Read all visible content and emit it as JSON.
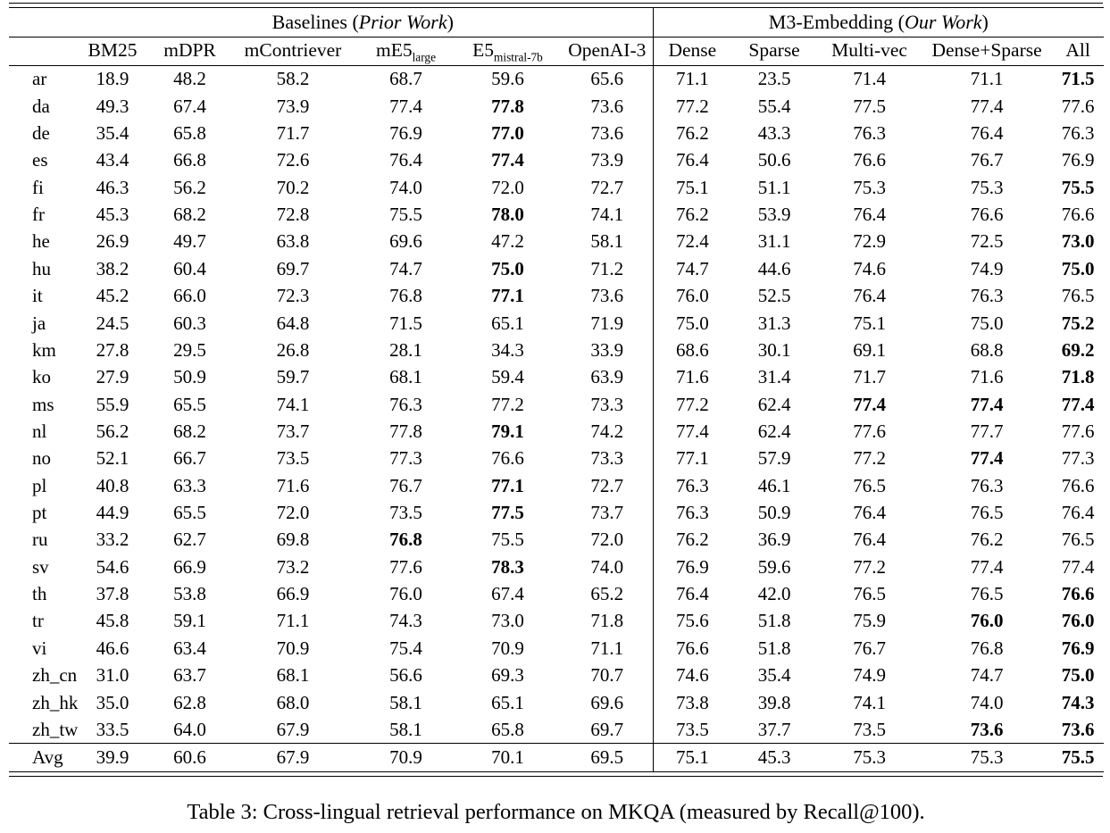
{
  "caption": "Table 3: Cross-lingual retrieval performance on MKQA (measured by Recall@100).",
  "table": {
    "groups": {
      "baselines": {
        "prefix": "Baselines (",
        "italic": "Prior Work",
        "suffix": ")"
      },
      "m3": {
        "prefix": "M3-Embedding (",
        "italic": "Our Work",
        "suffix": ")"
      }
    },
    "columns": [
      {
        "label": "BM25"
      },
      {
        "label": "mDPR"
      },
      {
        "label": "mContriever"
      },
      {
        "label": "mE5",
        "sub": "large"
      },
      {
        "label": "E5",
        "sub": "mistral-7b"
      },
      {
        "label": "OpenAI-3"
      },
      {
        "label": "Dense",
        "section_start": true
      },
      {
        "label": "Sparse"
      },
      {
        "label": "Multi-vec"
      },
      {
        "label": "Dense+Sparse"
      },
      {
        "label": "All"
      }
    ],
    "rows": [
      {
        "lang": "ar",
        "values": [
          "18.9",
          "48.2",
          "58.2",
          "68.7",
          "59.6",
          "65.6",
          "71.1",
          "23.5",
          "71.4",
          "71.1",
          "71.5"
        ],
        "bold": [
          10
        ]
      },
      {
        "lang": "da",
        "values": [
          "49.3",
          "67.4",
          "73.9",
          "77.4",
          "77.8",
          "73.6",
          "77.2",
          "55.4",
          "77.5",
          "77.4",
          "77.6"
        ],
        "bold": [
          4
        ]
      },
      {
        "lang": "de",
        "values": [
          "35.4",
          "65.8",
          "71.7",
          "76.9",
          "77.0",
          "73.6",
          "76.2",
          "43.3",
          "76.3",
          "76.4",
          "76.3"
        ],
        "bold": [
          4
        ]
      },
      {
        "lang": "es",
        "values": [
          "43.4",
          "66.8",
          "72.6",
          "76.4",
          "77.4",
          "73.9",
          "76.4",
          "50.6",
          "76.6",
          "76.7",
          "76.9"
        ],
        "bold": [
          4
        ]
      },
      {
        "lang": "fi",
        "values": [
          "46.3",
          "56.2",
          "70.2",
          "74.0",
          "72.0",
          "72.7",
          "75.1",
          "51.1",
          "75.3",
          "75.3",
          "75.5"
        ],
        "bold": [
          10
        ]
      },
      {
        "lang": "fr",
        "values": [
          "45.3",
          "68.2",
          "72.8",
          "75.5",
          "78.0",
          "74.1",
          "76.2",
          "53.9",
          "76.4",
          "76.6",
          "76.6"
        ],
        "bold": [
          4
        ]
      },
      {
        "lang": "he",
        "values": [
          "26.9",
          "49.7",
          "63.8",
          "69.6",
          "47.2",
          "58.1",
          "72.4",
          "31.1",
          "72.9",
          "72.5",
          "73.0"
        ],
        "bold": [
          10
        ]
      },
      {
        "lang": "hu",
        "values": [
          "38.2",
          "60.4",
          "69.7",
          "74.7",
          "75.0",
          "71.2",
          "74.7",
          "44.6",
          "74.6",
          "74.9",
          "75.0"
        ],
        "bold": [
          4,
          10
        ]
      },
      {
        "lang": "it",
        "values": [
          "45.2",
          "66.0",
          "72.3",
          "76.8",
          "77.1",
          "73.6",
          "76.0",
          "52.5",
          "76.4",
          "76.3",
          "76.5"
        ],
        "bold": [
          4
        ]
      },
      {
        "lang": "ja",
        "values": [
          "24.5",
          "60.3",
          "64.8",
          "71.5",
          "65.1",
          "71.9",
          "75.0",
          "31.3",
          "75.1",
          "75.0",
          "75.2"
        ],
        "bold": [
          10
        ]
      },
      {
        "lang": "km",
        "values": [
          "27.8",
          "29.5",
          "26.8",
          "28.1",
          "34.3",
          "33.9",
          "68.6",
          "30.1",
          "69.1",
          "68.8",
          "69.2"
        ],
        "bold": [
          10
        ]
      },
      {
        "lang": "ko",
        "values": [
          "27.9",
          "50.9",
          "59.7",
          "68.1",
          "59.4",
          "63.9",
          "71.6",
          "31.4",
          "71.7",
          "71.6",
          "71.8"
        ],
        "bold": [
          10
        ]
      },
      {
        "lang": "ms",
        "values": [
          "55.9",
          "65.5",
          "74.1",
          "76.3",
          "77.2",
          "73.3",
          "77.2",
          "62.4",
          "77.4",
          "77.4",
          "77.4"
        ],
        "bold": [
          8,
          9,
          10
        ]
      },
      {
        "lang": "nl",
        "values": [
          "56.2",
          "68.2",
          "73.7",
          "77.8",
          "79.1",
          "74.2",
          "77.4",
          "62.4",
          "77.6",
          "77.7",
          "77.6"
        ],
        "bold": [
          4
        ]
      },
      {
        "lang": "no",
        "values": [
          "52.1",
          "66.7",
          "73.5",
          "77.3",
          "76.6",
          "73.3",
          "77.1",
          "57.9",
          "77.2",
          "77.4",
          "77.3"
        ],
        "bold": [
          9
        ]
      },
      {
        "lang": "pl",
        "values": [
          "40.8",
          "63.3",
          "71.6",
          "76.7",
          "77.1",
          "72.7",
          "76.3",
          "46.1",
          "76.5",
          "76.3",
          "76.6"
        ],
        "bold": [
          4
        ]
      },
      {
        "lang": "pt",
        "values": [
          "44.9",
          "65.5",
          "72.0",
          "73.5",
          "77.5",
          "73.7",
          "76.3",
          "50.9",
          "76.4",
          "76.5",
          "76.4"
        ],
        "bold": [
          4
        ]
      },
      {
        "lang": "ru",
        "values": [
          "33.2",
          "62.7",
          "69.8",
          "76.8",
          "75.5",
          "72.0",
          "76.2",
          "36.9",
          "76.4",
          "76.2",
          "76.5"
        ],
        "bold": [
          3
        ]
      },
      {
        "lang": "sv",
        "values": [
          "54.6",
          "66.9",
          "73.2",
          "77.6",
          "78.3",
          "74.0",
          "76.9",
          "59.6",
          "77.2",
          "77.4",
          "77.4"
        ],
        "bold": [
          4
        ]
      },
      {
        "lang": "th",
        "values": [
          "37.8",
          "53.8",
          "66.9",
          "76.0",
          "67.4",
          "65.2",
          "76.4",
          "42.0",
          "76.5",
          "76.5",
          "76.6"
        ],
        "bold": [
          10
        ]
      },
      {
        "lang": "tr",
        "values": [
          "45.8",
          "59.1",
          "71.1",
          "74.3",
          "73.0",
          "71.8",
          "75.6",
          "51.8",
          "75.9",
          "76.0",
          "76.0"
        ],
        "bold": [
          9,
          10
        ]
      },
      {
        "lang": "vi",
        "values": [
          "46.6",
          "63.4",
          "70.9",
          "75.4",
          "70.9",
          "71.1",
          "76.6",
          "51.8",
          "76.7",
          "76.8",
          "76.9"
        ],
        "bold": [
          10
        ]
      },
      {
        "lang": "zh_cn",
        "values": [
          "31.0",
          "63.7",
          "68.1",
          "56.6",
          "69.3",
          "70.7",
          "74.6",
          "35.4",
          "74.9",
          "74.7",
          "75.0"
        ],
        "bold": [
          10
        ]
      },
      {
        "lang": "zh_hk",
        "values": [
          "35.0",
          "62.8",
          "68.0",
          "58.1",
          "65.1",
          "69.6",
          "73.8",
          "39.8",
          "74.1",
          "74.0",
          "74.3"
        ],
        "bold": [
          10
        ]
      },
      {
        "lang": "zh_tw",
        "values": [
          "33.5",
          "64.0",
          "67.9",
          "58.1",
          "65.8",
          "69.7",
          "73.5",
          "37.7",
          "73.5",
          "73.6",
          "73.6"
        ],
        "bold": [
          9,
          10
        ]
      }
    ],
    "avg_row": {
      "lang": "Avg",
      "values": [
        "39.9",
        "60.6",
        "67.9",
        "70.9",
        "70.1",
        "69.5",
        "75.1",
        "45.3",
        "75.3",
        "75.3",
        "75.5"
      ],
      "bold": [
        10
      ]
    }
  }
}
